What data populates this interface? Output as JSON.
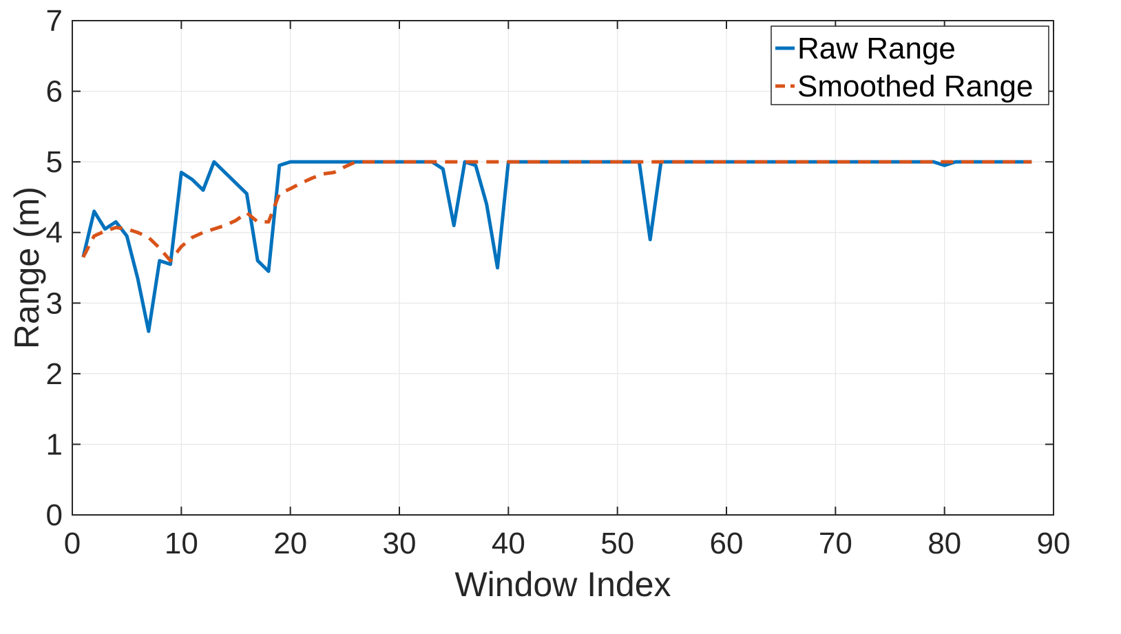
{
  "chart_data": {
    "type": "line",
    "xlabel": "Window Index",
    "ylabel": "Range (m)",
    "xlim": [
      0,
      90
    ],
    "ylim": [
      0,
      7
    ],
    "xticks": [
      0,
      10,
      20,
      30,
      40,
      50,
      60,
      70,
      80,
      90
    ],
    "yticks": [
      0,
      1,
      2,
      3,
      4,
      5,
      6,
      7
    ],
    "grid": true,
    "legend_position": "top-right",
    "series": [
      {
        "name": "Raw Range",
        "color": "#0072BD",
        "style": "solid",
        "x": [
          1,
          2,
          3,
          4,
          5,
          6,
          7,
          8,
          9,
          10,
          11,
          12,
          13,
          14,
          15,
          16,
          17,
          18,
          19,
          20,
          33,
          34,
          35,
          36,
          37,
          38,
          39,
          40,
          52,
          53,
          54,
          79,
          80,
          81,
          88
        ],
        "y": [
          3.65,
          4.3,
          4.05,
          4.15,
          3.95,
          3.35,
          2.6,
          3.6,
          3.55,
          4.85,
          4.75,
          4.6,
          5.0,
          4.85,
          4.7,
          4.55,
          3.6,
          3.45,
          4.95,
          5.0,
          5.0,
          4.9,
          4.1,
          5.0,
          4.95,
          4.4,
          3.5,
          5.0,
          5.0,
          3.9,
          5.0,
          5.0,
          4.95,
          5.0,
          5.0
        ]
      },
      {
        "name": "Smoothed Range",
        "color": "#D95319",
        "style": "dashed",
        "x": [
          1,
          2,
          3,
          4,
          5,
          6,
          7,
          8,
          9,
          10,
          11,
          12,
          13,
          14,
          15,
          16,
          17,
          18,
          19,
          20,
          21,
          22,
          23,
          24,
          25,
          26,
          27,
          88
        ],
        "y": [
          3.65,
          3.95,
          4.02,
          4.07,
          4.05,
          4.0,
          3.93,
          3.78,
          3.6,
          3.8,
          3.93,
          4.0,
          4.05,
          4.1,
          4.17,
          4.28,
          4.15,
          4.15,
          4.55,
          4.62,
          4.7,
          4.77,
          4.83,
          4.85,
          4.93,
          5.0,
          5.0,
          5.0
        ]
      }
    ]
  }
}
